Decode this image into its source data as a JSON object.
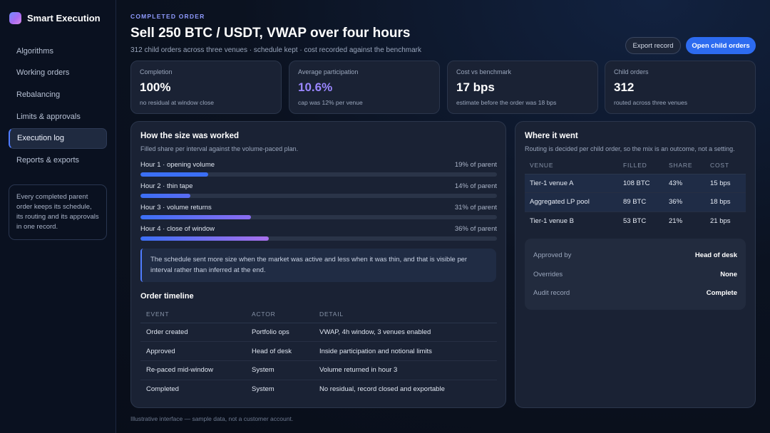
{
  "app": {
    "name": "Smart Execution"
  },
  "sidebar": {
    "items": [
      {
        "label": "Algorithms",
        "active": false
      },
      {
        "label": "Working orders",
        "active": false
      },
      {
        "label": "Rebalancing",
        "active": false
      },
      {
        "label": "Limits & approvals",
        "active": false
      },
      {
        "label": "Execution log",
        "active": true
      },
      {
        "label": "Reports & exports",
        "active": false
      }
    ],
    "note": "Every completed parent order keeps its schedule, its routing and its approvals in one record."
  },
  "header": {
    "eyebrow": "COMPLETED ORDER",
    "title": "Sell 250 BTC / USDT, VWAP over four hours",
    "subtitle": "312 child orders across three venues · schedule kept · cost recorded against the benchmark",
    "export_label": "Export record",
    "open_label": "Open child orders"
  },
  "stats": [
    {
      "label": "Completion",
      "value": "100%",
      "note": "no residual at window close",
      "accent": false
    },
    {
      "label": "Average participation",
      "value": "10.6%",
      "note": "cap was 12% per venue",
      "accent": true
    },
    {
      "label": "Cost vs benchmark",
      "value": "17 bps",
      "note": "estimate before the order was 18 bps",
      "accent": false
    },
    {
      "label": "Child orders",
      "value": "312",
      "note": "routed across three venues",
      "accent": false
    }
  ],
  "worked": {
    "title": "How the size was worked",
    "subtitle": "Filled share per interval against the volume-paced plan.",
    "bars": [
      {
        "label": "Hour 1 · opening volume",
        "value_text": "19% of parent",
        "share": 0.19,
        "color": "#3b6ff5"
      },
      {
        "label": "Hour 2 · thin tape",
        "value_text": "14% of parent",
        "share": 0.14,
        "color": "#5a6cf2"
      },
      {
        "label": "Hour 3 · volume returns",
        "value_text": "31% of parent",
        "share": 0.31,
        "color": "#8a6cf0"
      },
      {
        "label": "Hour 4 · close of window",
        "value_text": "36% of parent",
        "share": 0.36,
        "color": "#a870ec"
      }
    ],
    "callout": "The schedule sent more size when the market was active and less when it was thin, and that is visible per interval rather than inferred at the end."
  },
  "timeline": {
    "title": "Order timeline",
    "headers": [
      "EVENT",
      "ACTOR",
      "DETAIL"
    ],
    "rows": [
      [
        "Order created",
        "Portfolio ops",
        "VWAP, 4h window, 3 venues enabled"
      ],
      [
        "Approved",
        "Head of desk",
        "Inside participation and notional limits"
      ],
      [
        "Re-paced mid-window",
        "System",
        "Volume returned in hour 3"
      ],
      [
        "Completed",
        "System",
        "No residual, record closed and exportable"
      ]
    ]
  },
  "routing": {
    "title": "Where it went",
    "subtitle": "Routing is decided per child order, so the mix is an outcome, not a setting.",
    "headers": [
      "VENUE",
      "FILLED",
      "SHARE",
      "COST"
    ],
    "rows": [
      [
        "Tier-1 venue A",
        "108 BTC",
        "43%",
        "15 bps"
      ],
      [
        "Aggregated LP pool",
        "89 BTC",
        "36%",
        "18 bps"
      ],
      [
        "Tier-1 venue B",
        "53 BTC",
        "21%",
        "21 bps"
      ]
    ]
  },
  "approvals": [
    {
      "label": "Approved by",
      "value": "Head of desk"
    },
    {
      "label": "Overrides",
      "value": "None"
    },
    {
      "label": "Audit record",
      "value": "Complete"
    }
  ],
  "footer": "Illustrative interface — sample data, not a customer account."
}
